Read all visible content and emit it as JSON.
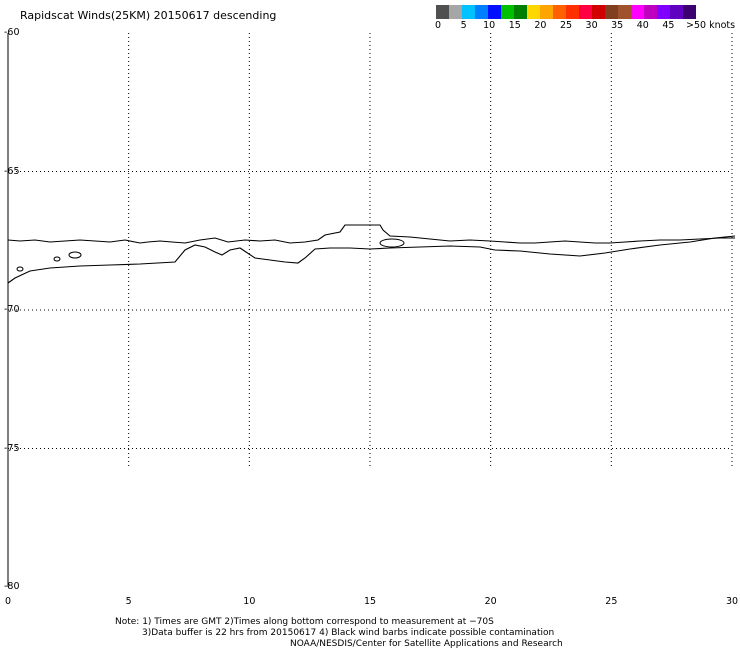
{
  "title": "Rapidscat Winds(25KM) 20150617 descending",
  "colorbar": {
    "colors": [
      "#505050",
      "#a6a6a6",
      "#00c2ff",
      "#0080ff",
      "#0010ff",
      "#00c000",
      "#008000",
      "#ffd700",
      "#ffa500",
      "#ff6000",
      "#ff3000",
      "#ff0040",
      "#d00000",
      "#804020",
      "#a0522d",
      "#ff00ff",
      "#c000c0",
      "#8000ff",
      "#6000c0",
      "#3c0070"
    ],
    "labels": [
      {
        "text": "0",
        "value": 0
      },
      {
        "text": "5",
        "value": 5
      },
      {
        "text": "10",
        "value": 10
      },
      {
        "text": "15",
        "value": 15
      },
      {
        "text": "20",
        "value": 20
      },
      {
        "text": "25",
        "value": 25
      },
      {
        "text": "30",
        "value": 30
      },
      {
        "text": "35",
        "value": 35
      },
      {
        "text": "40",
        "value": 40
      },
      {
        "text": "45",
        "value": 45
      },
      {
        "text": ">50 knots",
        "value": 50
      }
    ]
  },
  "axes": {
    "lat_labels": [
      "-60",
      "-65",
      "-70",
      "-75",
      "-80"
    ],
    "lat_values": [
      -60,
      -65,
      -70,
      -75,
      -80
    ],
    "lon_labels": [
      "0",
      "5",
      "10",
      "15",
      "20",
      "25",
      "30"
    ],
    "lon_values": [
      0,
      5,
      10,
      15,
      20,
      25,
      30
    ],
    "lon_range": [
      0,
      30
    ],
    "lat_range": [
      -60,
      -80
    ],
    "grid": "dotted"
  },
  "notes": {
    "line1": "Note: 1) Times are GMT 2)Times along bottom correspond to measurement at −70S",
    "line2": "3)Data buffer is 22 hrs from 20150617 4) Black wind barbs indicate possible contamination",
    "line3": "NOAA/NESDIS/Center for Satellite Applications and Research"
  }
}
